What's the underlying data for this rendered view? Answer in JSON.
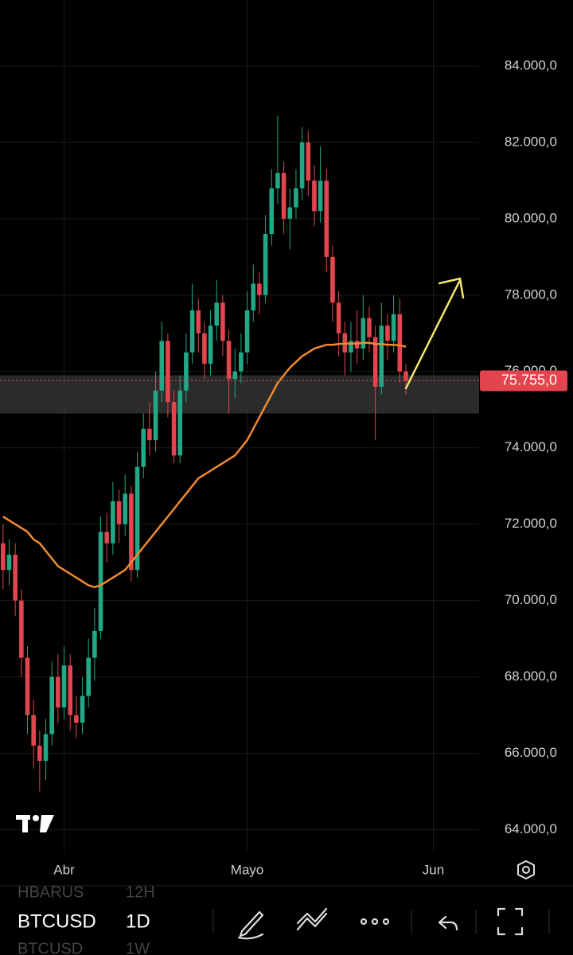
{
  "chart_data": {
    "type": "candlestick",
    "open": [
      71500,
      70800,
      71200,
      70000,
      68500,
      67000,
      66200,
      65800,
      66500,
      68000,
      67200,
      68300,
      67000,
      66800,
      67500,
      68500,
      69200,
      71800,
      71500,
      72600,
      72000,
      72800,
      70800,
      73500,
      74500,
      74200,
      75500,
      76800,
      75200,
      73800,
      75500,
      76500,
      77600,
      77000,
      76200,
      77200,
      77800,
      76800,
      75800,
      76000,
      76500,
      77600,
      78300,
      78000,
      79600,
      80800,
      81200,
      80000,
      80300,
      80800,
      82000,
      81000,
      80200,
      81000,
      79000,
      77800,
      77000,
      76500,
      76800,
      76600,
      77400,
      76900,
      75600,
      77200,
      76800,
      77500,
      76000
    ],
    "high": [
      72000,
      71600,
      71500,
      70300,
      68800,
      67400,
      66600,
      66900,
      68400,
      68600,
      68800,
      68600,
      67500,
      68000,
      69000,
      69800,
      72200,
      72300,
      73100,
      72900,
      73300,
      73000,
      73900,
      74900,
      75200,
      76000,
      77300,
      77000,
      75500,
      75900,
      77000,
      78300,
      77900,
      77300,
      77600,
      78400,
      78000,
      77100,
      76600,
      77000,
      78100,
      78800,
      78600,
      80100,
      81300,
      82700,
      81500,
      80800,
      81300,
      82400,
      82300,
      81400,
      81900,
      81300,
      79300,
      78100,
      77300,
      77300,
      77600,
      78000,
      77700,
      77200,
      77800,
      77500,
      78000,
      77900,
      76200
    ],
    "low": [
      70300,
      70400,
      69600,
      68000,
      66500,
      65600,
      65000,
      65300,
      66200,
      66800,
      66900,
      66600,
      66400,
      66500,
      67200,
      67900,
      69000,
      71000,
      71200,
      71500,
      71700,
      70500,
      70600,
      73200,
      73800,
      73900,
      75200,
      74800,
      73600,
      73600,
      75200,
      76200,
      76500,
      75800,
      75900,
      76800,
      76400,
      74900,
      75300,
      75700,
      76200,
      77300,
      77500,
      77800,
      79300,
      80400,
      79600,
      79200,
      80000,
      80500,
      80600,
      79800,
      79900,
      78600,
      77300,
      76400,
      75900,
      76000,
      76200,
      76300,
      76500,
      74200,
      75400,
      76300,
      76500,
      75700,
      75400
    ],
    "close": [
      70800,
      71200,
      70000,
      68500,
      67000,
      66200,
      65800,
      66500,
      68000,
      67200,
      68300,
      67000,
      66800,
      67500,
      68500,
      69200,
      71800,
      71500,
      72600,
      72000,
      72800,
      70800,
      73500,
      74500,
      74200,
      75500,
      76800,
      75200,
      73800,
      75500,
      76500,
      77600,
      77000,
      76200,
      77200,
      77800,
      76800,
      75800,
      76000,
      76500,
      77600,
      78300,
      78000,
      79600,
      80800,
      81200,
      80000,
      80300,
      80800,
      82000,
      81000,
      80200,
      81000,
      79000,
      77800,
      77000,
      76500,
      76800,
      76600,
      77400,
      76900,
      75600,
      77200,
      76800,
      77500,
      76000,
      75755
    ],
    "up_color": "#22a884",
    "down_color": "#e2454e",
    "ma": {
      "color": "#f08a2e",
      "values": [
        72200,
        72100,
        72000,
        71900,
        71800,
        71600,
        71500,
        71300,
        71100,
        70900,
        70800,
        70700,
        70600,
        70500,
        70400,
        70350,
        70400,
        70500,
        70600,
        70700,
        70800,
        71000,
        71200,
        71400,
        71600,
        71800,
        72000,
        72200,
        72400,
        72600,
        72800,
        73000,
        73200,
        73300,
        73400,
        73500,
        73600,
        73700,
        73800,
        74000,
        74200,
        74500,
        74800,
        75100,
        75400,
        75700,
        75900,
        76100,
        76250,
        76400,
        76500,
        76600,
        76650,
        76700,
        76700,
        76720,
        76730,
        76730,
        76730,
        76750,
        76750,
        76720,
        76720,
        76700,
        76700,
        76680,
        76650
      ]
    },
    "zone": [
      74900,
      75900
    ],
    "last_price": {
      "value": 75755,
      "label": "75.755,0"
    },
    "ylim": [
      63050,
      85730
    ],
    "yticks": [
      {
        "value": 64000,
        "label": "64.000,0"
      },
      {
        "value": 66000,
        "label": "66.000,0"
      },
      {
        "value": 68000,
        "label": "68.000,0"
      },
      {
        "value": 70000,
        "label": "70.000,0"
      },
      {
        "value": 72000,
        "label": "72.000,0"
      },
      {
        "value": 74000,
        "label": "74.000,0"
      },
      {
        "value": 76000,
        "label": "76.000,0"
      },
      {
        "value": 78000,
        "label": "78.000,0"
      },
      {
        "value": 80000,
        "label": "80.000,0"
      },
      {
        "value": 82000,
        "label": "82.000,0"
      },
      {
        "value": 84000,
        "label": "84.000,0"
      }
    ],
    "xlim": [
      -0.5,
      78
    ],
    "xticks": [
      {
        "value": 10,
        "label": "Abr"
      },
      {
        "value": 40,
        "label": "Mayo"
      },
      {
        "value": 70.5,
        "label": "Jun"
      }
    ],
    "grid": true
  },
  "toolbar": {
    "symbols": [
      {
        "symbol": "HBARUS",
        "interval": "12H"
      },
      {
        "symbol": "BTCUSD",
        "interval": "1D"
      },
      {
        "symbol": "BTCUSD",
        "interval": "1W"
      }
    ]
  }
}
